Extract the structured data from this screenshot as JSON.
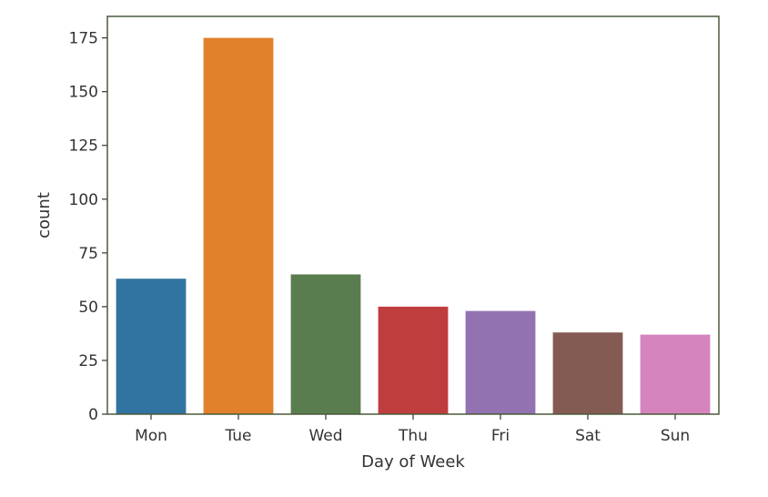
{
  "chart_data": {
    "type": "bar",
    "title": "",
    "xlabel": "Day of Week",
    "ylabel": "count",
    "categories": [
      "Mon",
      "Tue",
      "Wed",
      "Thu",
      "Fri",
      "Sat",
      "Sun"
    ],
    "values": [
      63,
      175,
      65,
      50,
      48,
      38,
      37
    ],
    "colors": [
      "#3274a1",
      "#e1812c",
      "#5a7d4f",
      "#c03d3e",
      "#9372b2",
      "#845b53",
      "#d684bd"
    ],
    "ylim": [
      0,
      185
    ],
    "yticks": [
      0,
      25,
      50,
      75,
      100,
      125,
      150,
      175
    ],
    "grid": false,
    "legend": "none"
  }
}
